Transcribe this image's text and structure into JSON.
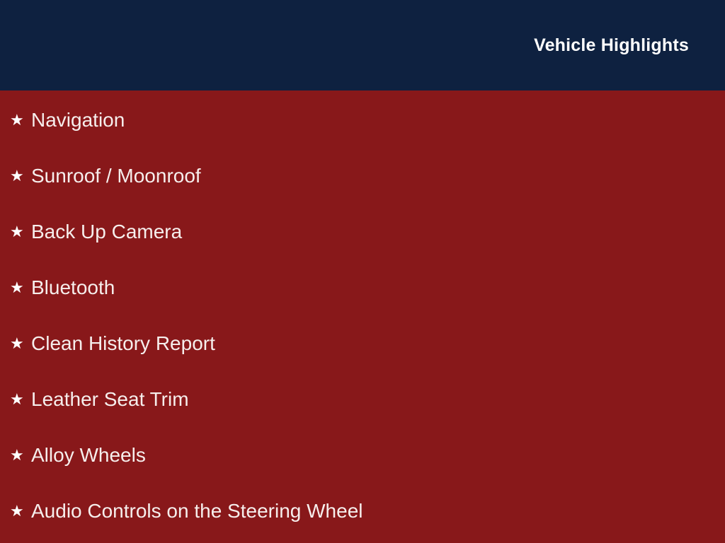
{
  "header": {
    "title": "Vehicle Highlights"
  },
  "highlights": {
    "bullet_icon": "★",
    "items": [
      {
        "label": "Navigation"
      },
      {
        "label": "Sunroof / Moonroof"
      },
      {
        "label": "Back Up Camera"
      },
      {
        "label": "Bluetooth"
      },
      {
        "label": "Clean History Report"
      },
      {
        "label": "Leather Seat Trim"
      },
      {
        "label": "Alloy Wheels"
      },
      {
        "label": "Audio Controls on the Steering Wheel"
      }
    ]
  },
  "colors": {
    "header_bg": "#0e2140",
    "body_bg": "#88181a",
    "title_text": "#ffffff",
    "item_text": "#f6eeec"
  }
}
